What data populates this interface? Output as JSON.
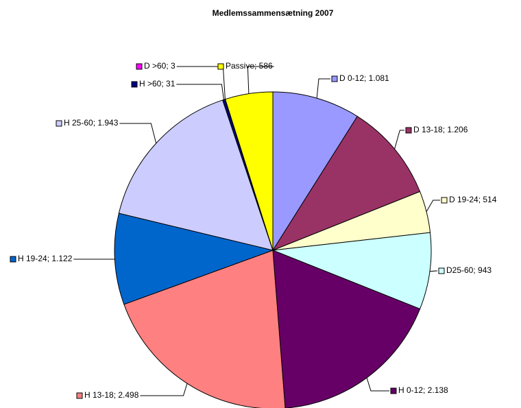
{
  "chart_data": {
    "type": "pie",
    "title": "Medlemssammensætning 2007",
    "value_labels": [
      "D 0-12; 1.081",
      "D 13-18; 1.206",
      "D 19-24; 514",
      "D25-60; 943",
      "H 0-12; 2.138",
      "H 13-18; 2.498",
      "H 19-24; 1.122",
      "H 25-60; 1.943",
      "H >60; 31",
      "D >60; 3",
      "Passive; 586"
    ],
    "values": [
      1081,
      1206,
      514,
      943,
      2138,
      2498,
      1122,
      1943,
      31,
      3,
      586
    ],
    "colors": [
      "#9999ff",
      "#993366",
      "#ffffcc",
      "#ccffff",
      "#660066",
      "#ff8080",
      "#0066cc",
      "#ccccff",
      "#000080",
      "#ff00ff",
      "#ffff00"
    ]
  }
}
